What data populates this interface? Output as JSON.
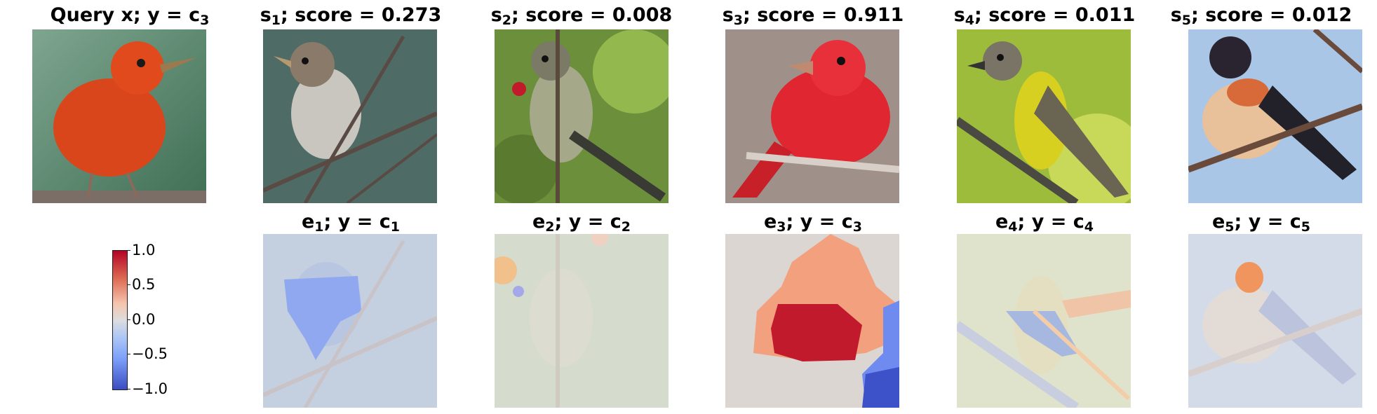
{
  "query": {
    "label": "Query x; y = c",
    "sub": "3"
  },
  "similar": [
    {
      "sym": "s",
      "sub": "1",
      "text": "; score = 0.273"
    },
    {
      "sym": "s",
      "sub": "2",
      "text": "; score = 0.008"
    },
    {
      "sym": "s",
      "sub": "3",
      "text": "; score = 0.911"
    },
    {
      "sym": "s",
      "sub": "4",
      "text": "; score = 0.011"
    },
    {
      "sym": "s",
      "sub": "5",
      "text": "; score = 0.012"
    }
  ],
  "explanations": [
    {
      "sym": "e",
      "sub": "1",
      "text": "; y = c",
      "csub": "1"
    },
    {
      "sym": "e",
      "sub": "2",
      "text": "; y = c",
      "csub": "2"
    },
    {
      "sym": "e",
      "sub": "3",
      "text": "; y = c",
      "csub": "3"
    },
    {
      "sym": "e",
      "sub": "4",
      "text": "; y = c",
      "csub": "4"
    },
    {
      "sym": "e",
      "sub": "5",
      "text": "; y = c",
      "csub": "5"
    }
  ],
  "colorbar": {
    "ticks": [
      "1.0",
      "0.5",
      "0.0",
      "−0.5",
      "−1.0"
    ],
    "colors": {
      "max": "#b40426",
      "mid": "#dddddd",
      "min": "#3b4cc0"
    }
  }
}
